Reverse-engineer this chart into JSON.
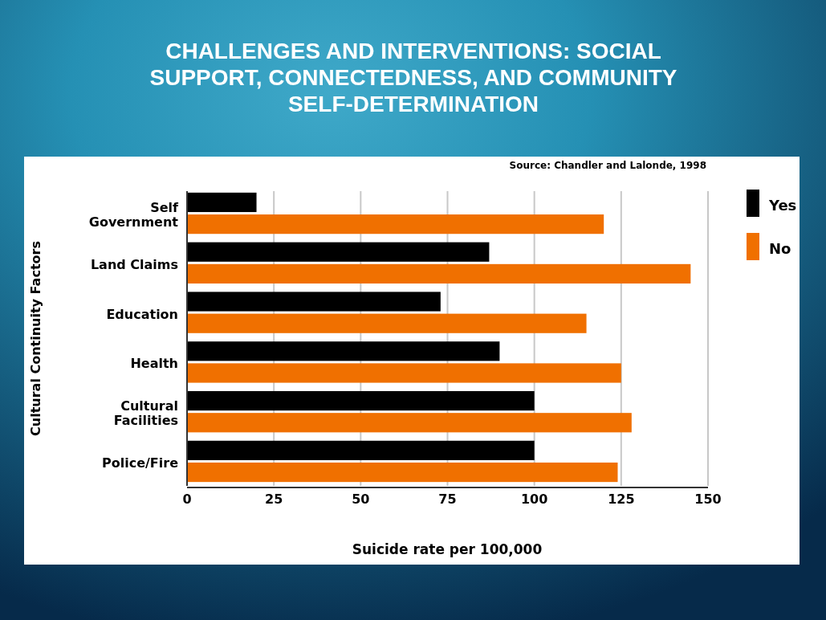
{
  "chart_data": {
    "type": "bar",
    "orientation": "horizontal",
    "title": "CHALLENGES AND INTERVENTIONS: SOCIAL SUPPORT, CONNECTEDNESS, AND COMMUNITY SELF-DETERMINATION",
    "xlabel": "Suicide rate per 100,000",
    "ylabel": "Cultural Continuity Factors",
    "annotations": [
      "Source: Chandler and Lalonde, 1998"
    ],
    "categories": [
      "Self Government",
      "Land Claims",
      "Education",
      "Health",
      "Cultural Facilities",
      "Police/Fire"
    ],
    "series": [
      {
        "name": "Yes",
        "color": "#000000",
        "values": [
          20,
          87,
          73,
          90,
          100,
          100
        ]
      },
      {
        "name": "No",
        "color": "#f07000",
        "values": [
          120,
          145,
          115,
          125,
          128,
          124
        ]
      }
    ],
    "xlim": [
      0,
      150
    ],
    "xticks": [
      0,
      25,
      50,
      75,
      100,
      125,
      150
    ],
    "grid": "x",
    "legend": "right"
  }
}
